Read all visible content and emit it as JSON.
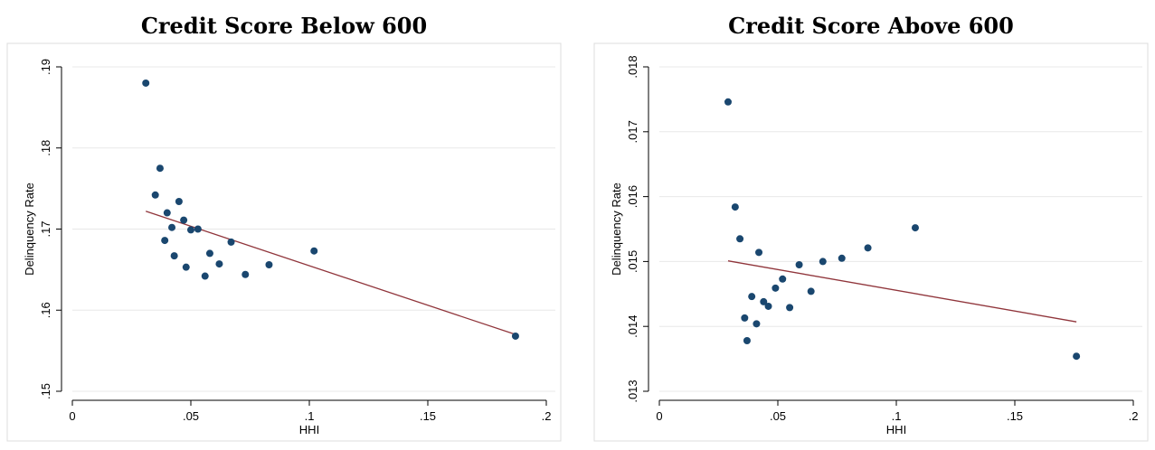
{
  "chart_data": [
    {
      "type": "scatter",
      "title": "Credit Score Below 600",
      "xlabel": "HHI",
      "ylabel": "Delinquency Rate",
      "xlim": [
        0,
        0.2
      ],
      "ylim": [
        0.15,
        0.19
      ],
      "xticks": [
        0,
        0.05,
        0.1,
        0.15,
        0.2
      ],
      "xtick_labels": [
        "0",
        ".05",
        ".1",
        ".15",
        ".2"
      ],
      "yticks": [
        0.15,
        0.16,
        0.17,
        0.18,
        0.19
      ],
      "ytick_labels": [
        ".15",
        ".16",
        ".17",
        ".18",
        ".19"
      ],
      "grid": true,
      "point_color": "#1a476f",
      "fit_color": "#90353b",
      "points": [
        {
          "x": 0.031,
          "y": 0.188
        },
        {
          "x": 0.035,
          "y": 0.1742
        },
        {
          "x": 0.037,
          "y": 0.1775
        },
        {
          "x": 0.039,
          "y": 0.1686
        },
        {
          "x": 0.04,
          "y": 0.172
        },
        {
          "x": 0.042,
          "y": 0.1702
        },
        {
          "x": 0.043,
          "y": 0.1667
        },
        {
          "x": 0.045,
          "y": 0.1734
        },
        {
          "x": 0.047,
          "y": 0.1711
        },
        {
          "x": 0.048,
          "y": 0.1653
        },
        {
          "x": 0.05,
          "y": 0.1699
        },
        {
          "x": 0.053,
          "y": 0.17
        },
        {
          "x": 0.056,
          "y": 0.1642
        },
        {
          "x": 0.058,
          "y": 0.167
        },
        {
          "x": 0.062,
          "y": 0.1657
        },
        {
          "x": 0.067,
          "y": 0.1684
        },
        {
          "x": 0.073,
          "y": 0.1644
        },
        {
          "x": 0.083,
          "y": 0.1656
        },
        {
          "x": 0.102,
          "y": 0.1673
        },
        {
          "x": 0.187,
          "y": 0.1568
        }
      ],
      "fit_line": {
        "x": [
          0.031,
          0.187
        ],
        "y": [
          0.1722,
          0.157
        ]
      }
    },
    {
      "type": "scatter",
      "title": "Credit Score Above 600",
      "xlabel": "HHI",
      "ylabel": "Delinquency Rate",
      "xlim": [
        0,
        0.2
      ],
      "ylim": [
        0.013,
        0.018
      ],
      "xticks": [
        0,
        0.05,
        0.1,
        0.15,
        0.2
      ],
      "xtick_labels": [
        "0",
        ".05",
        ".1",
        ".15",
        ".2"
      ],
      "yticks": [
        0.013,
        0.014,
        0.015,
        0.016,
        0.017,
        0.018
      ],
      "ytick_labels": [
        ".013",
        ".014",
        ".015",
        ".016",
        ".017",
        ".018"
      ],
      "grid": true,
      "point_color": "#1a476f",
      "fit_color": "#90353b",
      "points": [
        {
          "x": 0.029,
          "y": 0.01746
        },
        {
          "x": 0.032,
          "y": 0.01584
        },
        {
          "x": 0.034,
          "y": 0.01535
        },
        {
          "x": 0.036,
          "y": 0.01413
        },
        {
          "x": 0.037,
          "y": 0.01378
        },
        {
          "x": 0.039,
          "y": 0.01446
        },
        {
          "x": 0.041,
          "y": 0.01404
        },
        {
          "x": 0.042,
          "y": 0.01514
        },
        {
          "x": 0.044,
          "y": 0.01438
        },
        {
          "x": 0.046,
          "y": 0.01431
        },
        {
          "x": 0.049,
          "y": 0.01459
        },
        {
          "x": 0.052,
          "y": 0.01473
        },
        {
          "x": 0.055,
          "y": 0.01429
        },
        {
          "x": 0.059,
          "y": 0.01495
        },
        {
          "x": 0.064,
          "y": 0.01454
        },
        {
          "x": 0.069,
          "y": 0.015
        },
        {
          "x": 0.077,
          "y": 0.01505
        },
        {
          "x": 0.088,
          "y": 0.01521
        },
        {
          "x": 0.108,
          "y": 0.01552
        },
        {
          "x": 0.176,
          "y": 0.01354
        }
      ],
      "fit_line": {
        "x": [
          0.029,
          0.176
        ],
        "y": [
          0.01501,
          0.01407
        ]
      }
    }
  ]
}
